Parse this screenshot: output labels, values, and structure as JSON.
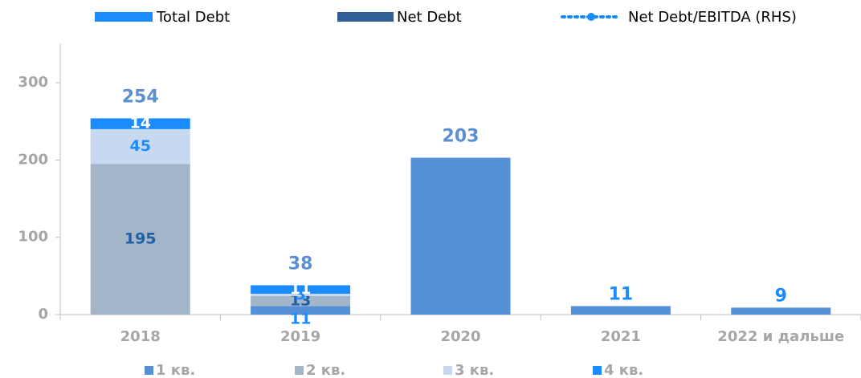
{
  "chart_data": {
    "type": "stacked_bar",
    "top_legend": [
      "Total Debt",
      "Net Debt",
      "Net Debt/EBITDA (RHS)"
    ],
    "categories": [
      "2018",
      "2019",
      "2020",
      "2021",
      "2022 и дальше"
    ],
    "series": [
      {
        "name": "1 кв.",
        "color": "#5590d6",
        "values": [
          0,
          11,
          203,
          11,
          9
        ]
      },
      {
        "name": "2 кв.",
        "color": "#a3b5c9",
        "values": [
          195,
          13,
          0,
          0,
          0
        ]
      },
      {
        "name": "3 кв.",
        "color": "#c6d9f1",
        "values": [
          45,
          3,
          0,
          0,
          0
        ]
      },
      {
        "name": "4 кв.",
        "color": "#1a8cff",
        "values": [
          14,
          11,
          0,
          0,
          0
        ]
      }
    ],
    "totals": [
      254,
      38,
      203,
      11,
      9
    ],
    "ylim": [
      0,
      350
    ],
    "yticks": [
      0,
      100,
      200,
      300
    ]
  }
}
